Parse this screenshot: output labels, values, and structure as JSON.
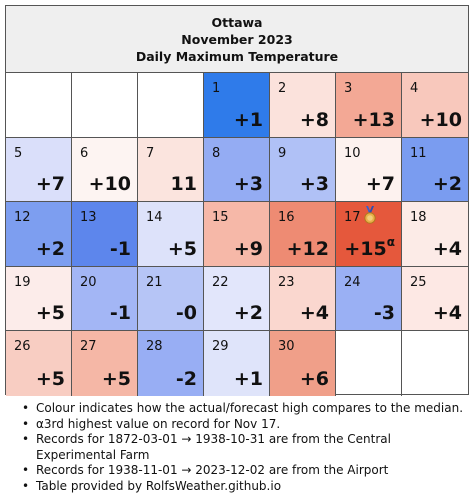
{
  "header": {
    "city": "Ottawa",
    "month": "November 2023",
    "subtitle": "Daily Maximum Temperature"
  },
  "colors": {
    "strong_cold": "#2f6fe4",
    "cold": "#8ea7f2",
    "cool": "#c6cff8",
    "neutral": "#ffffff",
    "warm_light": "#fbe0da",
    "warm": "#f5ab98",
    "hot": "#ee8068",
    "record": "#e4553b"
  },
  "calendar": {
    "leading_blank_days": 3,
    "trailing_blank_days": 2,
    "days": [
      {
        "day": "1",
        "value": "+1",
        "color": "#2f7bea"
      },
      {
        "day": "2",
        "value": "+8",
        "color": "#fbe2dc"
      },
      {
        "day": "3",
        "value": "+13",
        "color": "#f3a895"
      },
      {
        "day": "4",
        "value": "+10",
        "color": "#f8c8bc"
      },
      {
        "day": "5",
        "value": "+7",
        "color": "#dadffa"
      },
      {
        "day": "6",
        "value": "+10",
        "color": "#fdf4f2"
      },
      {
        "day": "7",
        "value": "11",
        "color": "#fbe4de"
      },
      {
        "day": "8",
        "value": "+3",
        "color": "#94acf3"
      },
      {
        "day": "9",
        "value": "+3",
        "color": "#b0c1f6"
      },
      {
        "day": "10",
        "value": "+7",
        "color": "#fdf2ef"
      },
      {
        "day": "11",
        "value": "+2",
        "color": "#7a9cf0"
      },
      {
        "day": "12",
        "value": "+2",
        "color": "#7d9ef0"
      },
      {
        "day": "13",
        "value": "-1",
        "color": "#5d86ec"
      },
      {
        "day": "14",
        "value": "+5",
        "color": "#dde2fa"
      },
      {
        "day": "15",
        "value": "+9",
        "color": "#f6b8a8"
      },
      {
        "day": "16",
        "value": "+12",
        "color": "#ee8b73"
      },
      {
        "day": "17",
        "value": "+15",
        "note_marker": "α",
        "color": "#e5583c",
        "medal": "bronze-medal-icon"
      },
      {
        "day": "18",
        "value": "+4",
        "color": "#fcebe7"
      },
      {
        "day": "19",
        "value": "+5",
        "color": "#fcecea"
      },
      {
        "day": "20",
        "value": "-1",
        "color": "#a3b6f5"
      },
      {
        "day": "21",
        "value": "-0",
        "color": "#b6c5f6"
      },
      {
        "day": "22",
        "value": "+2",
        "color": "#e2e6fb"
      },
      {
        "day": "23",
        "value": "+4",
        "color": "#fad7cf"
      },
      {
        "day": "24",
        "value": "-3",
        "color": "#9ab0f4"
      },
      {
        "day": "25",
        "value": "+4",
        "color": "#fde8e4"
      },
      {
        "day": "26",
        "value": "+5",
        "color": "#f8cdc2"
      },
      {
        "day": "27",
        "value": "+5",
        "color": "#f5b7a6"
      },
      {
        "day": "28",
        "value": "-2",
        "color": "#98aef4"
      },
      {
        "day": "29",
        "value": "+1",
        "color": "#dfe4fa"
      },
      {
        "day": "30",
        "value": "+6",
        "color": "#f09f89"
      }
    ]
  },
  "notes": [
    "Colour indicates how the actual/forecast high compares to the median.",
    "α3rd highest value on record for Nov 17.",
    "Records for 1872-03-01 → 1938-10-31 are from the Central Experimental Farm",
    "Records for 1938-11-01 → 2023-12-02 are from the Airport",
    "Table provided by RolfsWeather.github.io"
  ]
}
